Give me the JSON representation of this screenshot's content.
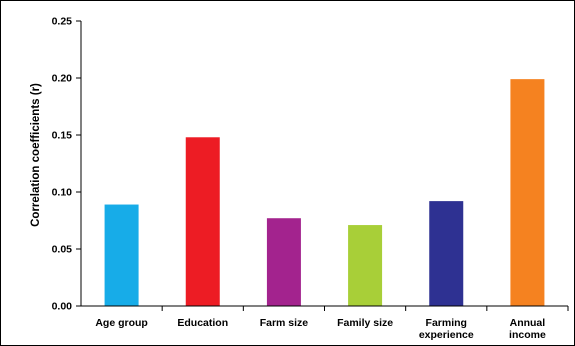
{
  "chart_data": {
    "type": "bar",
    "title": "",
    "xlabel": "",
    "ylabel": "Correlation coefficients (r)",
    "categories": [
      [
        "Age group"
      ],
      [
        "Education"
      ],
      [
        "Farm size"
      ],
      [
        "Family size"
      ],
      [
        "Farming",
        "experience"
      ],
      [
        "Annual",
        "income"
      ]
    ],
    "values": [
      0.089,
      0.148,
      0.077,
      0.071,
      0.092,
      0.199
    ],
    "colors": [
      "#17ace8",
      "#ed1c24",
      "#a3238e",
      "#a8cf38",
      "#2e3192",
      "#f58220"
    ],
    "ylim": [
      0,
      0.25
    ],
    "yticks": [
      "0.00",
      "0.05",
      "0.10",
      "0.15",
      "0.20",
      "0.25"
    ],
    "grid": false,
    "legend": "none"
  }
}
